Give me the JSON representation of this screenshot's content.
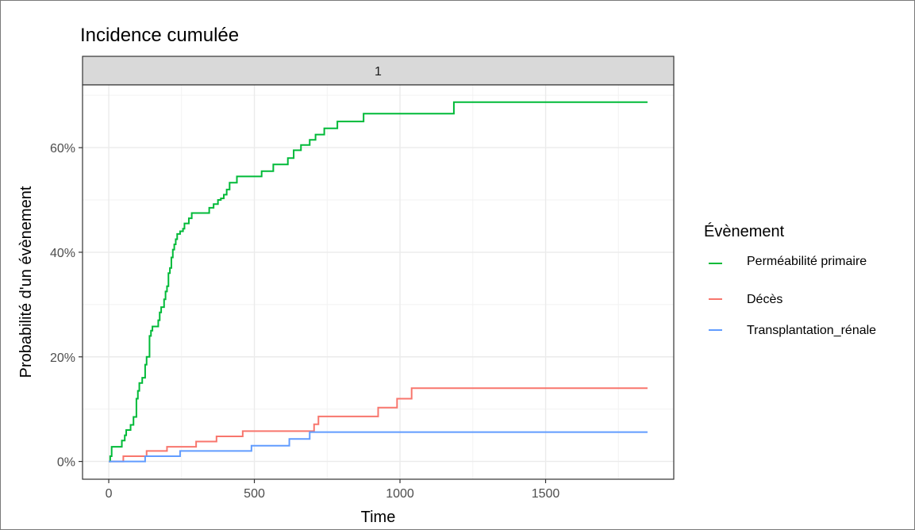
{
  "chart_data": {
    "type": "line",
    "title": "Incidence cumulée",
    "facet_label": "1",
    "xlabel": "Time",
    "ylabel": "Probabilité d'un évènement",
    "xlim": [
      -90,
      1940
    ],
    "ylim": [
      -0.034,
      0.72
    ],
    "x_ticks": [
      0,
      500,
      1000,
      1500
    ],
    "x_tick_labels": [
      "0",
      "500",
      "1000",
      "1500"
    ],
    "y_ticks": [
      0,
      0.2,
      0.4,
      0.6
    ],
    "y_tick_labels": [
      "0%",
      "20%",
      "40%",
      "60%"
    ],
    "grid": true,
    "legend_title": "Évènement",
    "legend_position": "right",
    "series": [
      {
        "name": "Perméabilité primaire",
        "color": "#00BA38",
        "step": true,
        "points": [
          [
            0,
            0.0
          ],
          [
            5,
            0.01
          ],
          [
            10,
            0.028
          ],
          [
            40,
            0.028
          ],
          [
            45,
            0.04
          ],
          [
            55,
            0.05
          ],
          [
            60,
            0.06
          ],
          [
            75,
            0.07
          ],
          [
            85,
            0.085
          ],
          [
            95,
            0.12
          ],
          [
            100,
            0.135
          ],
          [
            105,
            0.15
          ],
          [
            115,
            0.16
          ],
          [
            125,
            0.185
          ],
          [
            130,
            0.2
          ],
          [
            140,
            0.24
          ],
          [
            145,
            0.25
          ],
          [
            150,
            0.258
          ],
          [
            170,
            0.27
          ],
          [
            175,
            0.285
          ],
          [
            180,
            0.295
          ],
          [
            190,
            0.31
          ],
          [
            195,
            0.325
          ],
          [
            200,
            0.335
          ],
          [
            205,
            0.36
          ],
          [
            210,
            0.37
          ],
          [
            215,
            0.39
          ],
          [
            220,
            0.405
          ],
          [
            225,
            0.415
          ],
          [
            230,
            0.425
          ],
          [
            235,
            0.435
          ],
          [
            245,
            0.44
          ],
          [
            255,
            0.445
          ],
          [
            260,
            0.455
          ],
          [
            275,
            0.465
          ],
          [
            285,
            0.475
          ],
          [
            345,
            0.485
          ],
          [
            360,
            0.492
          ],
          [
            375,
            0.5
          ],
          [
            385,
            0.503
          ],
          [
            395,
            0.51
          ],
          [
            405,
            0.52
          ],
          [
            415,
            0.533
          ],
          [
            440,
            0.545
          ],
          [
            525,
            0.555
          ],
          [
            565,
            0.568
          ],
          [
            615,
            0.58
          ],
          [
            635,
            0.595
          ],
          [
            660,
            0.605
          ],
          [
            690,
            0.615
          ],
          [
            710,
            0.625
          ],
          [
            740,
            0.637
          ],
          [
            785,
            0.65
          ],
          [
            875,
            0.665
          ],
          [
            1185,
            0.687
          ],
          [
            1850,
            0.687
          ]
        ]
      },
      {
        "name": "Décès",
        "color": "#F8766D",
        "step": true,
        "points": [
          [
            0,
            0.0
          ],
          [
            50,
            0.01
          ],
          [
            130,
            0.02
          ],
          [
            200,
            0.028
          ],
          [
            300,
            0.038
          ],
          [
            370,
            0.048
          ],
          [
            460,
            0.058
          ],
          [
            705,
            0.071
          ],
          [
            720,
            0.086
          ],
          [
            925,
            0.103
          ],
          [
            990,
            0.12
          ],
          [
            1040,
            0.14
          ],
          [
            1850,
            0.14
          ]
        ]
      },
      {
        "name": "Transplantation_rénale",
        "color": "#619CFF",
        "step": true,
        "points": [
          [
            0,
            0.0
          ],
          [
            125,
            0.01
          ],
          [
            245,
            0.02
          ],
          [
            490,
            0.03
          ],
          [
            620,
            0.043
          ],
          [
            690,
            0.056
          ],
          [
            1850,
            0.056
          ]
        ]
      }
    ]
  }
}
